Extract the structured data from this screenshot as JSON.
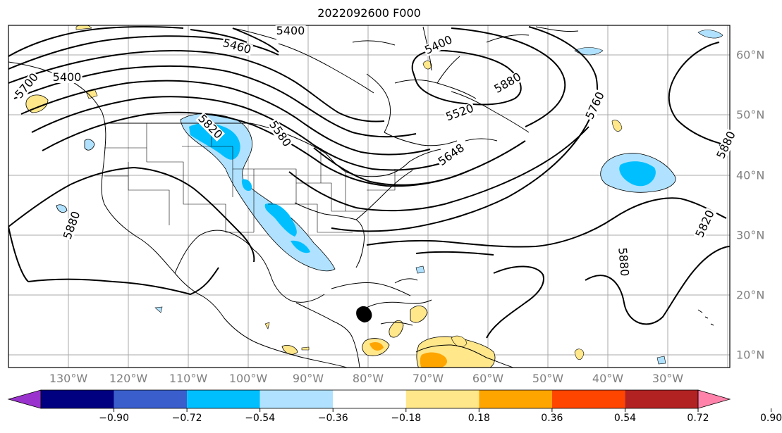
{
  "map": {
    "title": "2022092600 F000",
    "longitude_labels": [
      "130°W",
      "120°W",
      "110°W",
      "100°W",
      "90°W",
      "80°W",
      "70°W",
      "60°W",
      "50°W",
      "40°W",
      "30°W"
    ],
    "latitude_labels": [
      "60°N",
      "50°N",
      "40°N",
      "30°N",
      "20°N",
      "10°N"
    ],
    "contour_labels": [
      "5400",
      "5460",
      "5400",
      "5700",
      "5520",
      "5580",
      "5820",
      "5648",
      "5760",
      "5880",
      "5880",
      "5820",
      "5880",
      "5880",
      "5400"
    ],
    "colorbar": {
      "ticks": [
        "−0.90",
        "−0.72",
        "−0.54",
        "−0.36",
        "−0.18",
        "0.18",
        "0.36",
        "0.54",
        "0.72",
        "0.90"
      ],
      "colors": [
        "#9a32cd",
        "#000080",
        "#3a5fcd",
        "#00bfff",
        "#b0e2ff",
        "#ffffff",
        "#ffe78a",
        "#ffa500",
        "#ff4500",
        "#b22222",
        "#ff82ab"
      ]
    }
  }
}
